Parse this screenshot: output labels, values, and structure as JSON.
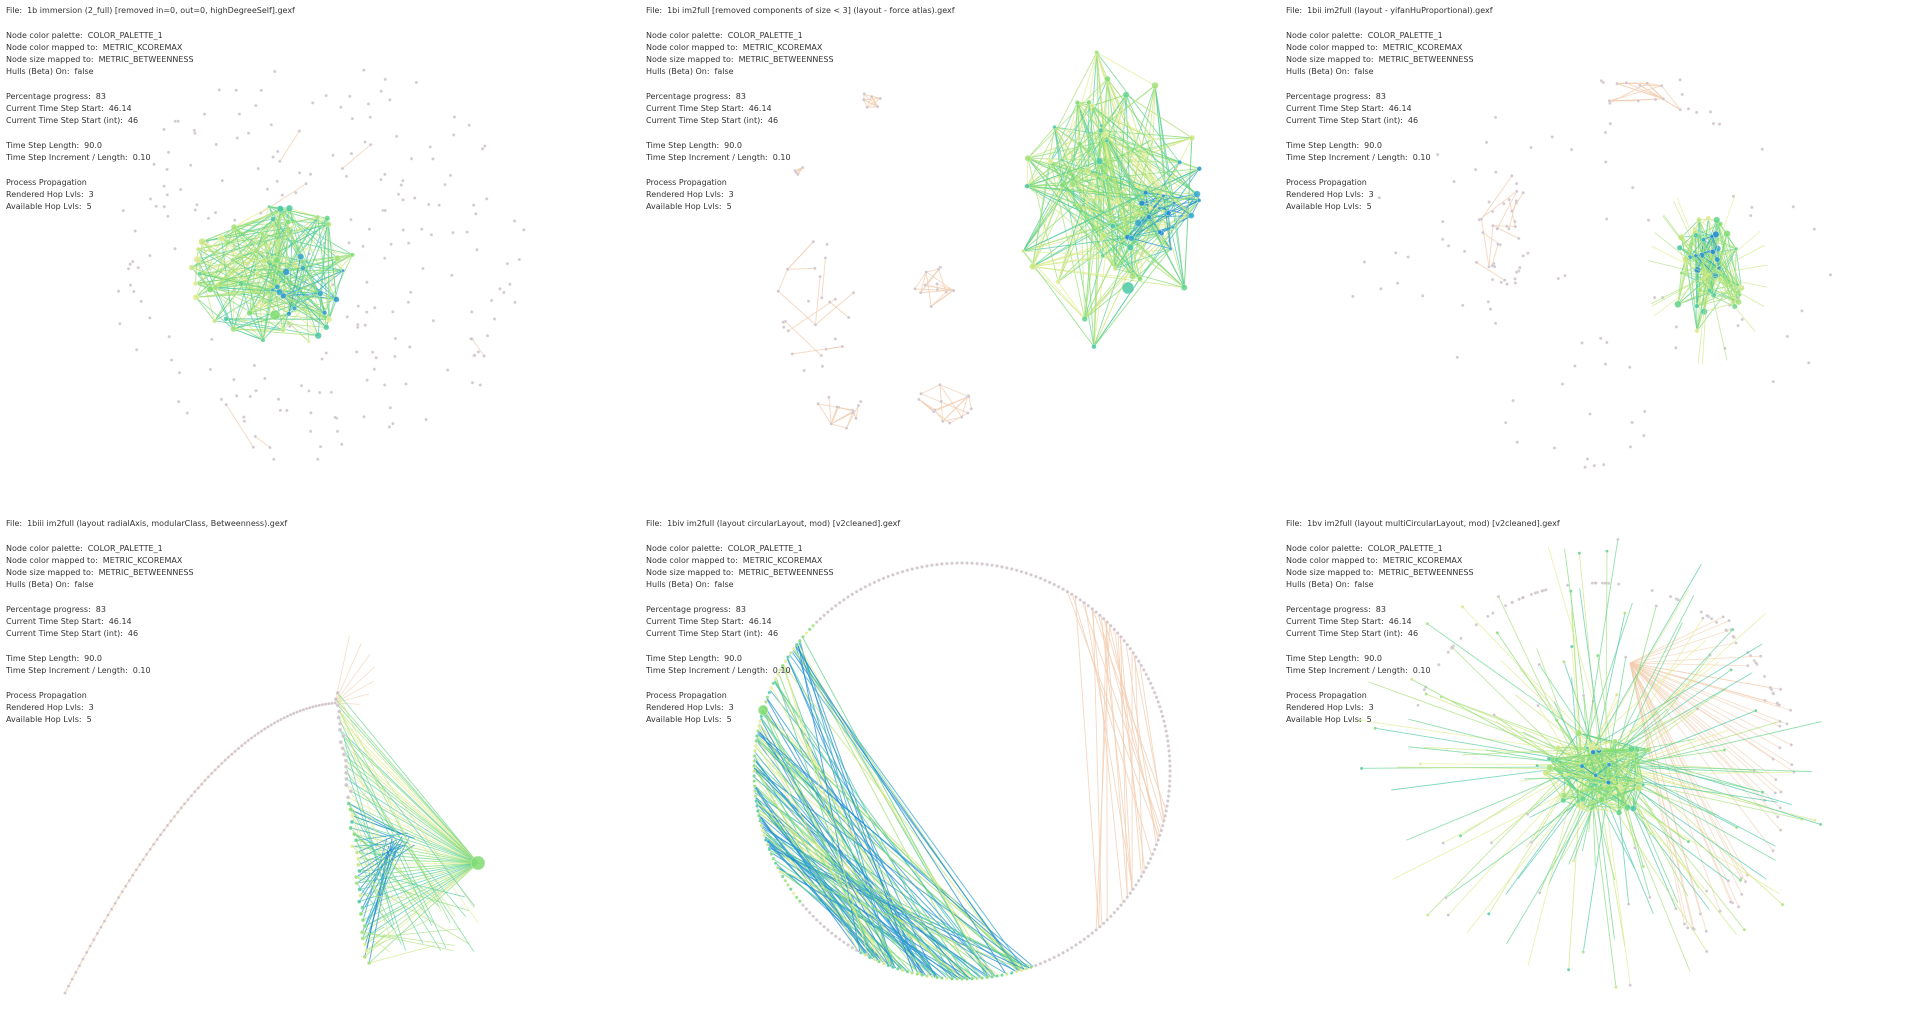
{
  "panels": [
    {
      "file": {
        "label": "File:",
        "value": "1b immersion (2_full) [removed in=0, out=0, highDegreeSelf].gexf"
      },
      "groups": [
        [
          {
            "label": "Node color palette:",
            "value": "COLOR_PALETTE_1"
          },
          {
            "label": "Node color mapped to:",
            "value": "METRIC_KCOREMAX"
          },
          {
            "label": "Node size mapped to:",
            "value": "METRIC_BETWEENNESS"
          },
          {
            "label": "Hulls (Beta) On:",
            "value": "false"
          }
        ],
        [
          {
            "label": "Percentage progress:",
            "value": "83"
          },
          {
            "label": "Current Time Step Start:",
            "value": "46.14"
          },
          {
            "label": "Current Time Step Start (int):",
            "value": "46"
          }
        ],
        [
          {
            "label": "Time Step Length:",
            "value": "90.0"
          },
          {
            "label": "Time Step Increment / Length:",
            "value": "0.10"
          }
        ],
        [
          {
            "label": "Process Propagation"
          },
          {
            "label": "Rendered Hop Lvls:",
            "value": "3"
          },
          {
            "label": "Available Hop Lvls:",
            "value": "5"
          }
        ]
      ]
    },
    {
      "file": {
        "label": "File:",
        "value": "1bi im2full [removed components of size < 3] (layout - force atlas).gexf"
      },
      "groups": [
        [
          {
            "label": "Node color palette:",
            "value": "COLOR_PALETTE_1"
          },
          {
            "label": "Node color mapped to:",
            "value": "METRIC_KCOREMAX"
          },
          {
            "label": "Node size mapped to:",
            "value": "METRIC_BETWEENNESS"
          },
          {
            "label": "Hulls (Beta) On:",
            "value": "false"
          }
        ],
        [
          {
            "label": "Percentage progress:",
            "value": "83"
          },
          {
            "label": "Current Time Step Start:",
            "value": "46.14"
          },
          {
            "label": "Current Time Step Start (int):",
            "value": "46"
          }
        ],
        [
          {
            "label": "Time Step Length:",
            "value": "90.0"
          },
          {
            "label": "Time Step Increment / Length:",
            "value": "0.10"
          }
        ],
        [
          {
            "label": "Process Propagation"
          },
          {
            "label": "Rendered Hop Lvls:",
            "value": "3"
          },
          {
            "label": "Available Hop Lvls:",
            "value": "5"
          }
        ]
      ]
    },
    {
      "file": {
        "label": "File:",
        "value": "1bii im2full (layout - yifanHuProportional).gexf"
      },
      "groups": [
        [
          {
            "label": "Node color palette:",
            "value": "COLOR_PALETTE_1"
          },
          {
            "label": "Node color mapped to:",
            "value": "METRIC_KCOREMAX"
          },
          {
            "label": "Node size mapped to:",
            "value": "METRIC_BETWEENNESS"
          },
          {
            "label": "Hulls (Beta) On:",
            "value": "false"
          }
        ],
        [
          {
            "label": "Percentage progress:",
            "value": "83"
          },
          {
            "label": "Current Time Step Start:",
            "value": "46.14"
          },
          {
            "label": "Current Time Step Start (int):",
            "value": "46"
          }
        ],
        [
          {
            "label": "Time Step Length:",
            "value": "90.0"
          },
          {
            "label": "Time Step Increment / Length:",
            "value": "0.10"
          }
        ],
        [
          {
            "label": "Process Propagation"
          },
          {
            "label": "Rendered Hop Lvls:",
            "value": "3"
          },
          {
            "label": "Available Hop Lvls:",
            "value": "5"
          }
        ]
      ]
    },
    {
      "file": {
        "label": "File:",
        "value": "1biii im2full (layout radialAxis, modularClass, Betweenness).gexf"
      },
      "groups": [
        [
          {
            "label": "Node color palette:",
            "value": "COLOR_PALETTE_1"
          },
          {
            "label": "Node color mapped to:",
            "value": "METRIC_KCOREMAX"
          },
          {
            "label": "Node size mapped to:",
            "value": "METRIC_BETWEENNESS"
          },
          {
            "label": "Hulls (Beta) On:",
            "value": "false"
          }
        ],
        [
          {
            "label": "Percentage progress:",
            "value": "83"
          },
          {
            "label": "Current Time Step Start:",
            "value": "46.14"
          },
          {
            "label": "Current Time Step Start (int):",
            "value": "46"
          }
        ],
        [
          {
            "label": "Time Step Length:",
            "value": "90.0"
          },
          {
            "label": "Time Step Increment / Length:",
            "value": "0.10"
          }
        ],
        [
          {
            "label": "Process Propagation"
          },
          {
            "label": "Rendered Hop Lvls:",
            "value": "3"
          },
          {
            "label": "Available Hop Lvls:",
            "value": "5"
          }
        ]
      ]
    },
    {
      "file": {
        "label": "File:",
        "value": "1biv im2full (layout circularLayout, mod) [v2cleaned].gexf"
      },
      "groups": [
        [
          {
            "label": "Node color palette:",
            "value": "COLOR_PALETTE_1"
          },
          {
            "label": "Node color mapped to:",
            "value": "METRIC_KCOREMAX"
          },
          {
            "label": "Node size mapped to:",
            "value": "METRIC_BETWEENNESS"
          },
          {
            "label": "Hulls (Beta) On:",
            "value": "false"
          }
        ],
        [
          {
            "label": "Percentage progress:",
            "value": "83"
          },
          {
            "label": "Current Time Step Start:",
            "value": "46.14"
          },
          {
            "label": "Current Time Step Start (int):",
            "value": "46"
          }
        ],
        [
          {
            "label": "Time Step Length:",
            "value": "90.0"
          },
          {
            "label": "Time Step Increment / Length:",
            "value": "0.10"
          }
        ],
        [
          {
            "label": "Process Propagation"
          },
          {
            "label": "Rendered Hop Lvls:",
            "value": "3"
          },
          {
            "label": "Available Hop Lvls:",
            "value": "5"
          }
        ]
      ]
    },
    {
      "file": {
        "label": "File:",
        "value": "1bv im2full (layout multiCircularLayout, mod) [v2cleaned].gexf"
      },
      "groups": [
        [
          {
            "label": "Node color palette:",
            "value": "COLOR_PALETTE_1"
          },
          {
            "label": "Node color mapped to:",
            "value": "METRIC_KCOREMAX"
          },
          {
            "label": "Node size mapped to:",
            "value": "METRIC_BETWEENNESS"
          },
          {
            "label": "Hulls (Beta) On:",
            "value": "false"
          }
        ],
        [
          {
            "label": "Percentage progress:",
            "value": "83"
          },
          {
            "label": "Current Time Step Start:",
            "value": "46.14"
          },
          {
            "label": "Current Time Step Start (int):",
            "value": "46"
          }
        ],
        [
          {
            "label": "Time Step Length:",
            "value": "90.0"
          },
          {
            "label": "Time Step Increment / Length:",
            "value": "0.10"
          }
        ],
        [
          {
            "label": "Process Propagation"
          },
          {
            "label": "Rendered Hop Lvls:",
            "value": "3"
          },
          {
            "label": "Available Hop Lvls:",
            "value": "5"
          }
        ]
      ]
    }
  ]
}
